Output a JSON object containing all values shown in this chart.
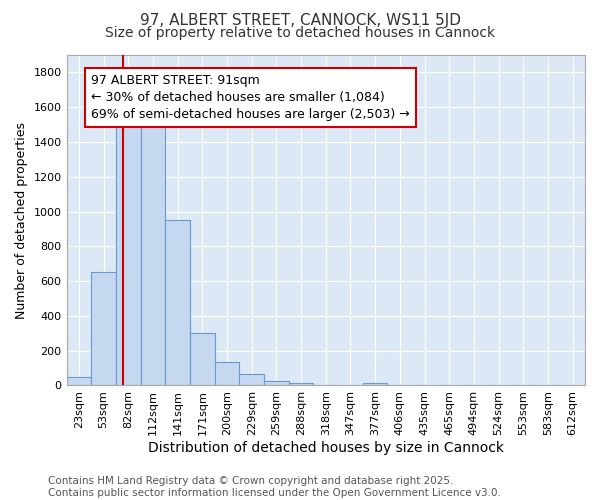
{
  "title": "97, ALBERT STREET, CANNOCK, WS11 5JD",
  "subtitle": "Size of property relative to detached houses in Cannock",
  "xlabel": "Distribution of detached houses by size in Cannock",
  "ylabel": "Number of detached properties",
  "bar_labels": [
    "23sqm",
    "53sqm",
    "82sqm",
    "112sqm",
    "141sqm",
    "171sqm",
    "200sqm",
    "229sqm",
    "259sqm",
    "288sqm",
    "318sqm",
    "347sqm",
    "377sqm",
    "406sqm",
    "435sqm",
    "465sqm",
    "494sqm",
    "524sqm",
    "553sqm",
    "583sqm",
    "612sqm"
  ],
  "bar_values": [
    50,
    650,
    1500,
    1500,
    950,
    300,
    135,
    65,
    25,
    15,
    0,
    0,
    15,
    0,
    0,
    0,
    0,
    0,
    0,
    0,
    0
  ],
  "bar_color": "#c5d8f0",
  "bar_edgecolor": "#6699cc",
  "figure_background": "#ffffff",
  "axes_background": "#dce8f5",
  "vline_color": "#cc0000",
  "annotation_text": "97 ALBERT STREET: 91sqm\n← 30% of detached houses are smaller (1,084)\n69% of semi-detached houses are larger (2,503) →",
  "annotation_box_edgecolor": "#cc0000",
  "annotation_box_facecolor": "#ffffff",
  "ylim": [
    0,
    1900
  ],
  "yticks": [
    0,
    200,
    400,
    600,
    800,
    1000,
    1200,
    1400,
    1600,
    1800
  ],
  "footnote": "Contains HM Land Registry data © Crown copyright and database right 2025.\nContains public sector information licensed under the Open Government Licence v3.0.",
  "title_fontsize": 11,
  "subtitle_fontsize": 10,
  "ylabel_fontsize": 9,
  "xlabel_fontsize": 10,
  "tick_fontsize": 8,
  "annotation_fontsize": 9,
  "footnote_fontsize": 7.5
}
